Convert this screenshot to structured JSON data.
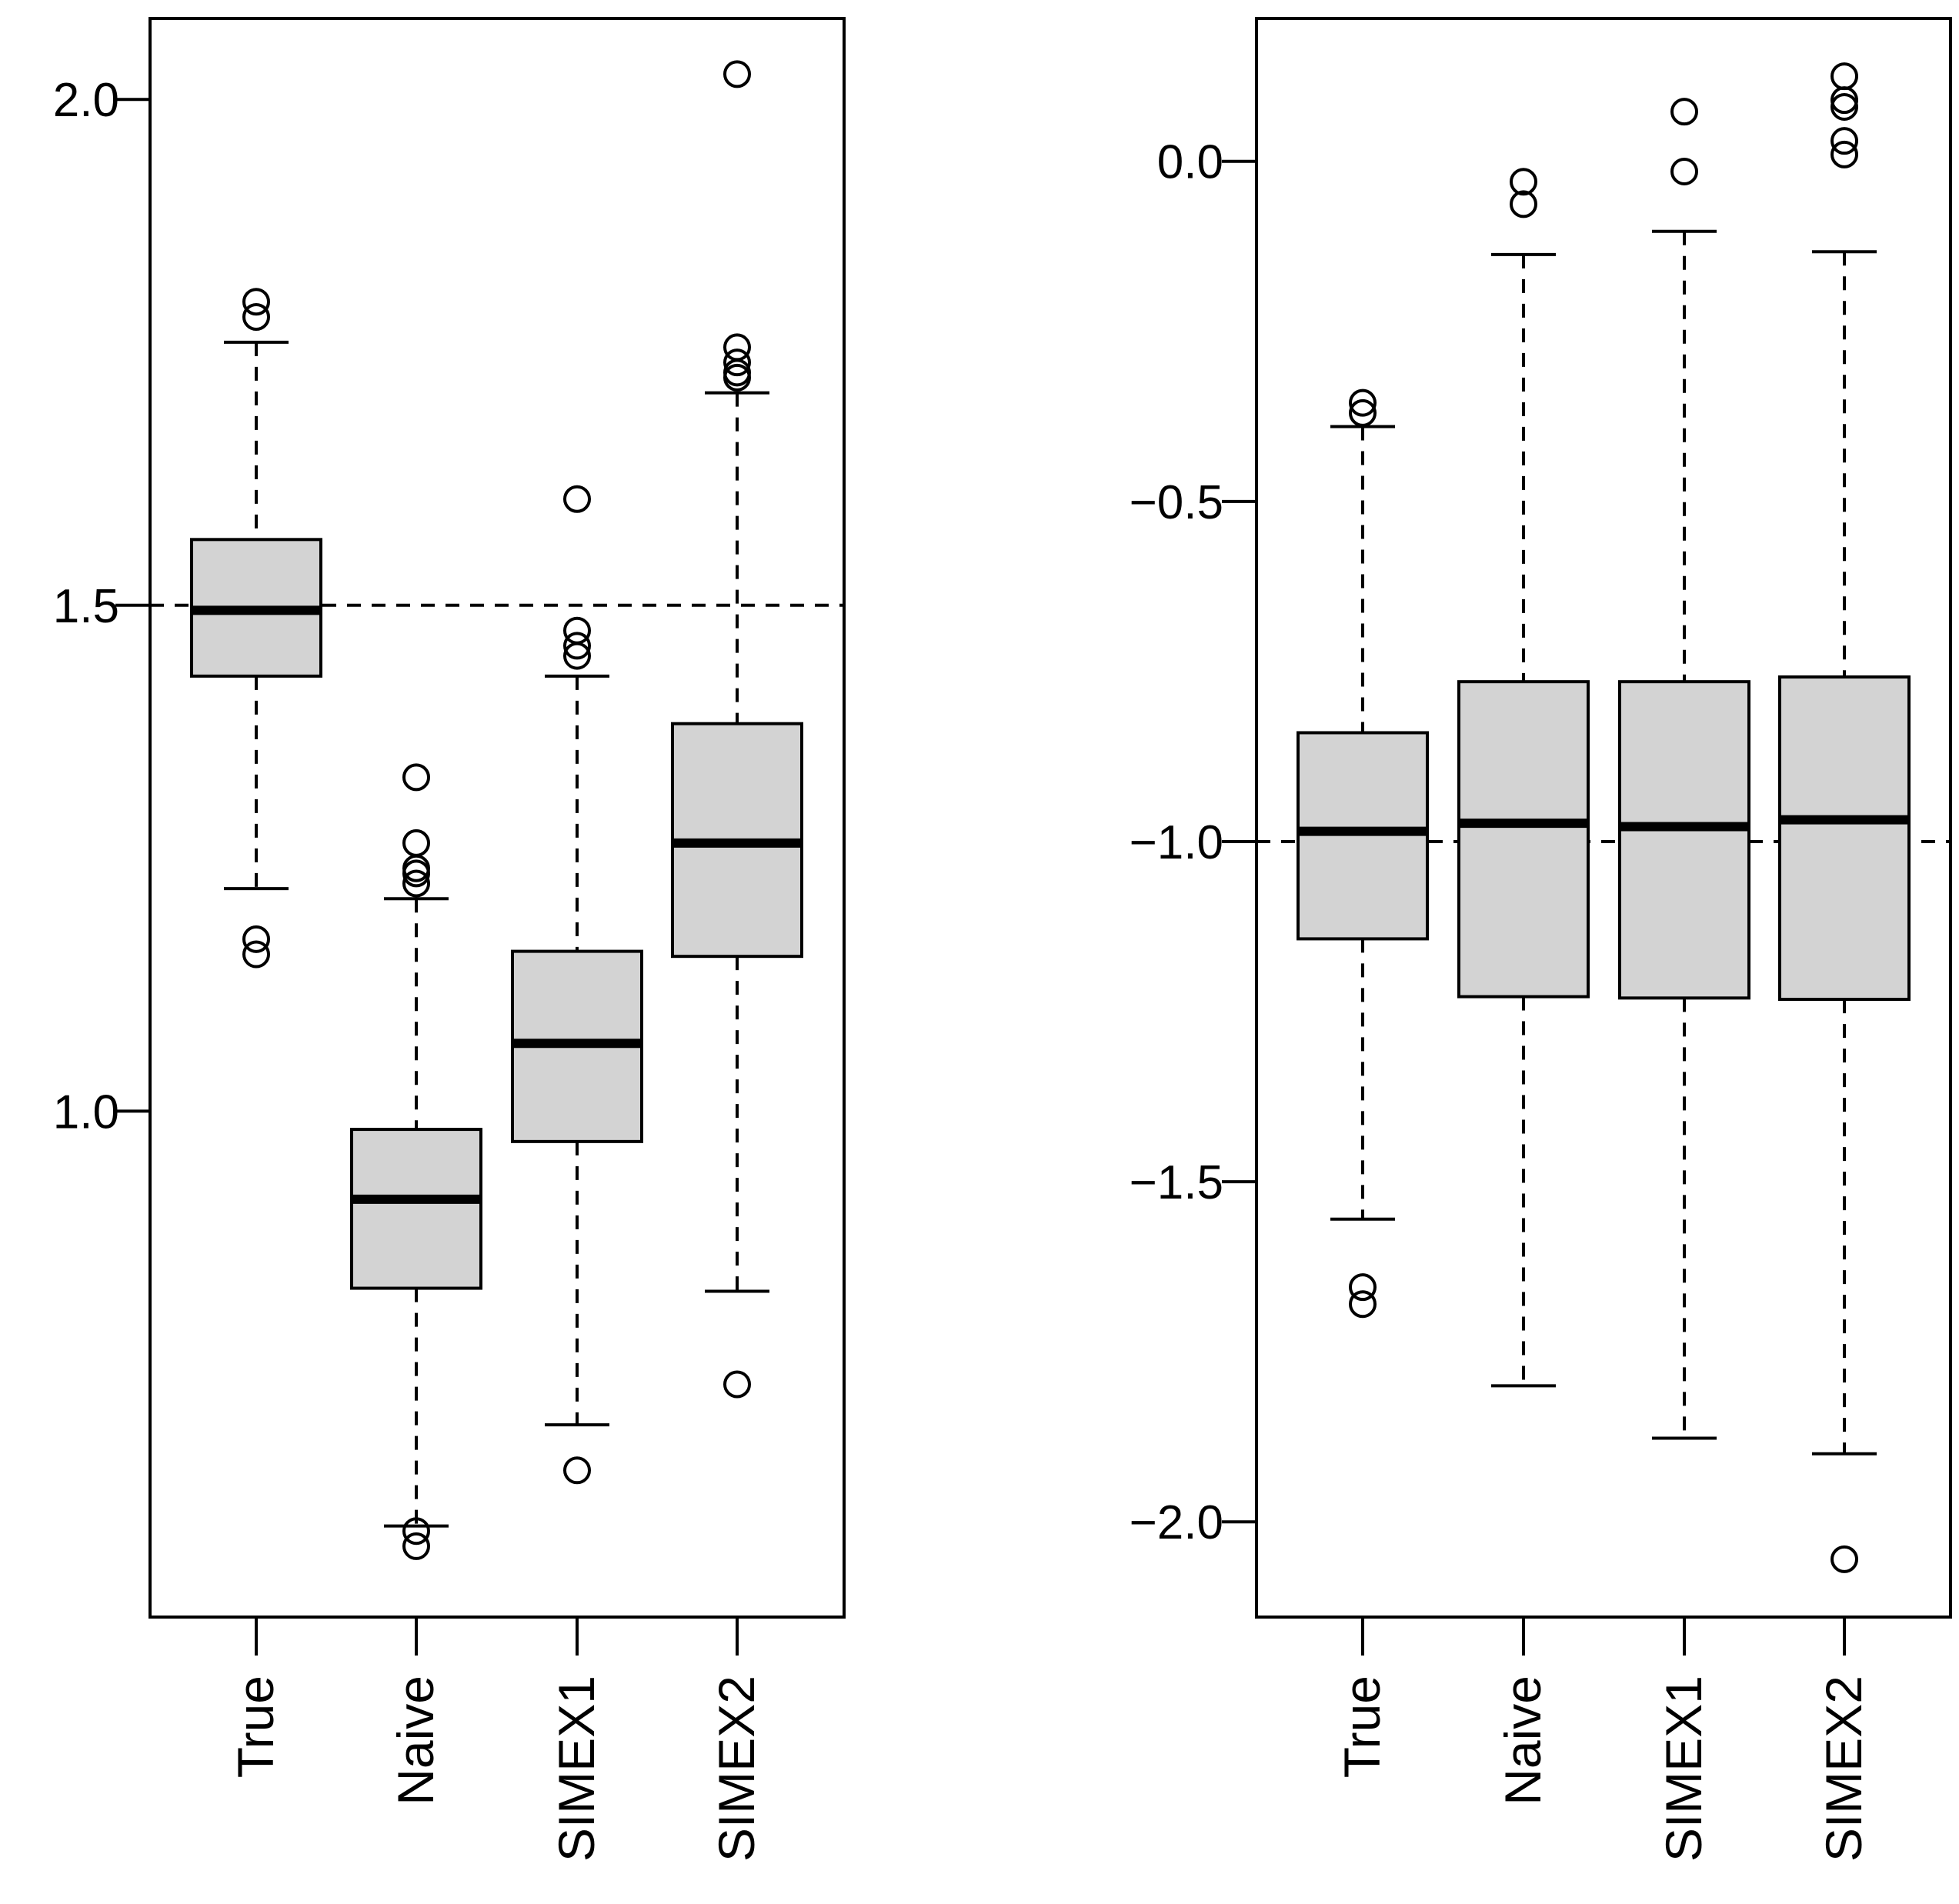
{
  "chart_data": [
    {
      "type": "boxplot",
      "title": "",
      "xlabel": "",
      "ylabel": "",
      "ylim": [
        0.5,
        2.08
      ],
      "y_ticks": [
        1.0,
        1.5,
        2.0
      ],
      "y_tick_labels": [
        "1.0",
        "1.5",
        "2.0"
      ],
      "reference_line": 1.5,
      "categories": [
        "True",
        "Naive",
        "SIMEX1",
        "SIMEX2"
      ],
      "boxes": [
        {
          "name": "True",
          "whisker_low": 1.22,
          "q1": 1.43,
          "median": 1.495,
          "q3": 1.565,
          "whisker_high": 1.76,
          "outliers": [
            1.8,
            1.785,
            1.17,
            1.155
          ]
        },
        {
          "name": "Naive",
          "whisker_low": 0.59,
          "q1": 0.825,
          "median": 0.913,
          "q3": 0.982,
          "whisker_high": 1.21,
          "outliers": [
            1.33,
            1.265,
            1.24,
            1.235,
            1.225,
            0.585,
            0.57
          ]
        },
        {
          "name": "SIMEX1",
          "whisker_low": 0.69,
          "q1": 0.97,
          "median": 1.067,
          "q3": 1.158,
          "whisker_high": 1.43,
          "outliers": [
            1.605,
            1.475,
            1.46,
            1.45,
            0.645
          ]
        },
        {
          "name": "SIMEX2",
          "whisker_low": 0.822,
          "q1": 1.153,
          "median": 1.265,
          "q3": 1.383,
          "whisker_high": 1.71,
          "outliers": [
            2.025,
            1.755,
            1.74,
            1.73,
            1.725,
            0.73
          ]
        }
      ]
    },
    {
      "type": "boxplot",
      "title": "",
      "xlabel": "",
      "ylabel": "",
      "ylim": [
        -2.14,
        0.21
      ],
      "y_ticks": [
        -2.0,
        -1.5,
        -1.0,
        -0.5,
        0.0
      ],
      "y_tick_labels": [
        "−2.0",
        "−1.5",
        "−1.0",
        "−0.5",
        "0.0"
      ],
      "reference_line": -1.0,
      "categories": [
        "True",
        "Naive",
        "SIMEX1",
        "SIMEX2"
      ],
      "boxes": [
        {
          "name": "True",
          "whisker_low": -1.555,
          "q1": -1.143,
          "median": -0.985,
          "q3": -0.84,
          "whisker_high": -0.39,
          "outliers": [
            -0.355,
            -0.37,
            -1.655,
            -1.68
          ]
        },
        {
          "name": "Naive",
          "whisker_low": -1.8,
          "q1": -1.228,
          "median": -0.973,
          "q3": -0.765,
          "whisker_high": -0.137,
          "outliers": [
            -0.03,
            -0.063
          ]
        },
        {
          "name": "SIMEX1",
          "whisker_low": -1.877,
          "q1": -1.23,
          "median": -0.978,
          "q3": -0.765,
          "whisker_high": -0.103,
          "outliers": [
            0.073,
            -0.015
          ]
        },
        {
          "name": "SIMEX2",
          "whisker_low": -1.9,
          "q1": -1.232,
          "median": -0.968,
          "q3": -0.758,
          "whisker_high": -0.133,
          "outliers": [
            0.125,
            0.09,
            0.08,
            0.03,
            0.01,
            -2.055
          ]
        }
      ]
    }
  ]
}
